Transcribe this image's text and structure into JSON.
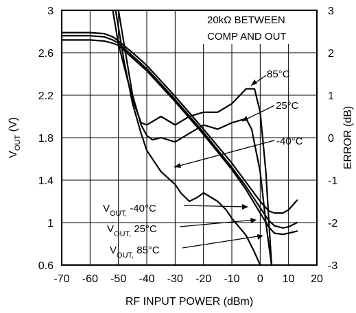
{
  "chart_data": {
    "type": "line",
    "xlabel": "RF INPUT POWER (dBm)",
    "ylabel_left": {
      "main": "V",
      "sub": "OUT",
      "unit": " (V)"
    },
    "ylabel_right": "ERROR (dB)",
    "xlim": [
      -70,
      20
    ],
    "ylim_left": [
      0.6,
      3.0
    ],
    "ylim_right": [
      -3,
      3
    ],
    "x_ticks": [
      "-70",
      "-60",
      "-50",
      "-40",
      "-30",
      "-20",
      "-10",
      "0",
      "10",
      "20"
    ],
    "y_ticks_left": [
      "0.6",
      "1",
      "1.4",
      "1.8",
      "2.2",
      "2.6",
      "3"
    ],
    "y_ticks_right": [
      "-3",
      "-2",
      "-1",
      "0",
      "1",
      "2",
      "3"
    ],
    "grid": true,
    "annotation": [
      "20kΩ BETWEEN",
      "COMP AND OUT"
    ],
    "series": [
      {
        "name": "VOUT, 85°C",
        "axis": "left",
        "x": [
          -70,
          -60,
          -55,
          -52,
          -50,
          -45,
          -40,
          -30,
          -20,
          -10,
          -5,
          0,
          3,
          5,
          8,
          10,
          13
        ],
        "y": [
          2.72,
          2.72,
          2.71,
          2.69,
          2.67,
          2.55,
          2.43,
          2.14,
          1.83,
          1.5,
          1.31,
          1.09,
          0.96,
          0.9,
          0.89,
          0.9,
          0.92
        ]
      },
      {
        "name": "VOUT, 25°C",
        "axis": "left",
        "x": [
          -70,
          -60,
          -55,
          -52,
          -50,
          -45,
          -40,
          -30,
          -20,
          -10,
          -5,
          0,
          3,
          5,
          8,
          10,
          13
        ],
        "y": [
          2.76,
          2.76,
          2.75,
          2.72,
          2.69,
          2.57,
          2.45,
          2.16,
          1.85,
          1.52,
          1.34,
          1.14,
          1.02,
          0.97,
          0.95,
          0.96,
          1.0
        ]
      },
      {
        "name": "VOUT, -40°C",
        "axis": "left",
        "x": [
          -70,
          -60,
          -55,
          -52,
          -50,
          -45,
          -40,
          -30,
          -20,
          -10,
          -5,
          0,
          3,
          5,
          8,
          10,
          13
        ],
        "y": [
          2.79,
          2.79,
          2.78,
          2.75,
          2.71,
          2.6,
          2.48,
          2.19,
          1.88,
          1.56,
          1.38,
          1.2,
          1.11,
          1.09,
          1.09,
          1.12,
          1.21
        ]
      },
      {
        "name": "85°C",
        "axis": "right",
        "x": [
          -52,
          -50,
          -45,
          -42,
          -40,
          -35,
          -30,
          -25,
          -20,
          -15,
          -10,
          -5,
          -2,
          0,
          2,
          4
        ],
        "y": [
          3.0,
          2.2,
          0.9,
          0.35,
          0.3,
          0.5,
          0.3,
          0.5,
          0.6,
          0.6,
          0.8,
          1.15,
          1.15,
          0.6,
          -0.8,
          -3.0
        ]
      },
      {
        "name": "25°C",
        "axis": "right",
        "x": [
          -50,
          -48,
          -45,
          -42,
          -40,
          -38,
          -35,
          -30,
          -25,
          -20,
          -15,
          -10,
          -5,
          -3,
          0,
          2,
          4
        ],
        "y": [
          3.0,
          2.2,
          1.0,
          0.3,
          0.05,
          -0.05,
          0.0,
          -0.1,
          0.1,
          0.3,
          0.2,
          0.35,
          0.45,
          0.2,
          -0.8,
          -2.0,
          -3.0
        ]
      },
      {
        "name": "-40°C",
        "axis": "right",
        "x": [
          -51,
          -48,
          -45,
          -42,
          -40,
          -35,
          -30,
          -28,
          -25,
          -22,
          -20,
          -15,
          -12,
          -10,
          -5,
          -2,
          0
        ],
        "y": [
          3.0,
          1.8,
          0.8,
          0.1,
          -0.3,
          -0.8,
          -1.1,
          -1.3,
          -1.5,
          -1.4,
          -1.3,
          -1.5,
          -1.7,
          -1.9,
          -2.3,
          -2.7,
          -3.0
        ]
      }
    ],
    "labels": {
      "c85": "85°C",
      "c25": "25°C",
      "cm40": "-40°C",
      "vout_m40": {
        "main": "V",
        "sub": "OUT,",
        "rest": " -40°C"
      },
      "vout_25": {
        "main": "V",
        "sub": "OUT,",
        "rest": " 25°C"
      },
      "vout_85": {
        "main": "V",
        "sub": "OUT,",
        "rest": " 85°C"
      }
    }
  }
}
